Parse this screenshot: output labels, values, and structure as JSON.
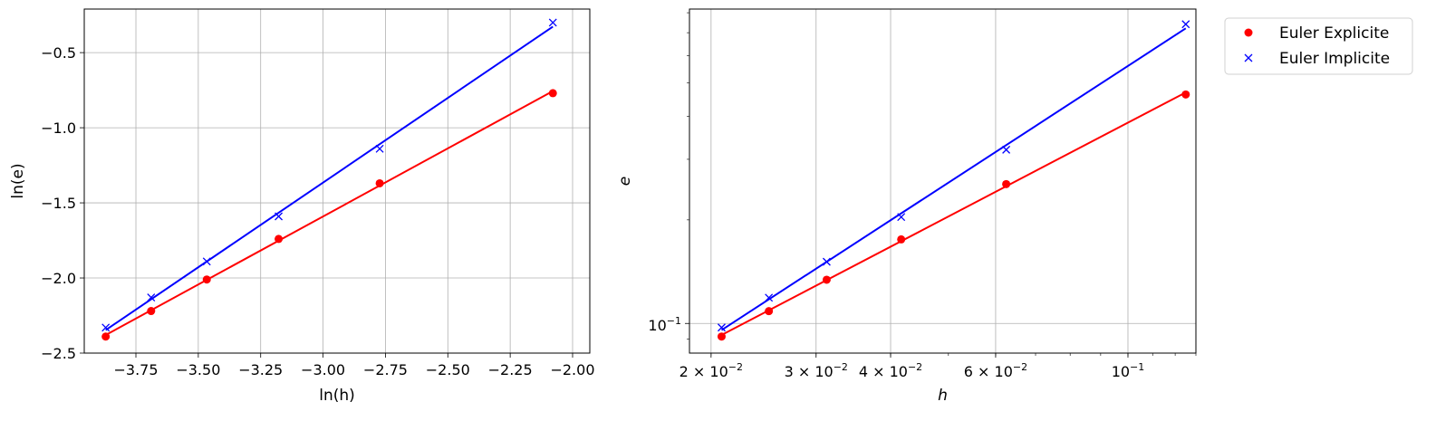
{
  "chart_data": [
    {
      "type": "line",
      "title": "",
      "xlabel": "ln(h)",
      "ylabel": "ln(e)",
      "xlim": [
        -3.957,
        -1.931
      ],
      "ylim": [
        -2.5,
        -0.21
      ],
      "xscale": "linear",
      "yscale": "linear",
      "grid": true,
      "xticks": [
        -3.75,
        -3.5,
        -3.25,
        -3.0,
        -2.75,
        -2.5,
        -2.25,
        -2.0
      ],
      "xtick_labels": [
        "−3.75",
        "−3.50",
        "−3.25",
        "−3.00",
        "−2.75",
        "−2.50",
        "−2.25",
        "−2.00"
      ],
      "yticks": [
        -2.5,
        -2.0,
        -1.5,
        -1.0,
        -0.5
      ],
      "ytick_labels": [
        "−2.5",
        "−2.0",
        "−1.5",
        "−1.0",
        "−0.5"
      ],
      "x": [
        -3.871,
        -3.689,
        -3.466,
        -3.178,
        -2.773,
        -2.079
      ],
      "series": [
        {
          "name": "Euler Explicite",
          "marker": "circle",
          "color": "#ff0000",
          "fit_line": true,
          "values": [
            -2.39,
            -2.22,
            -2.01,
            -1.74,
            -1.37,
            -0.77
          ]
        },
        {
          "name": "Euler Implicite",
          "marker": "x",
          "color": "#0000ff",
          "fit_line": true,
          "values": [
            -2.33,
            -2.13,
            -1.89,
            -1.59,
            -1.14,
            -0.3
          ]
        }
      ]
    },
    {
      "type": "line",
      "title": "",
      "xlabel": "h",
      "ylabel": "e",
      "xlim": [
        0.0184,
        0.13
      ],
      "ylim": [
        0.082,
        0.82
      ],
      "xscale": "log",
      "yscale": "log",
      "grid": true,
      "xticks": [
        0.02,
        0.03,
        0.04,
        0.06,
        0.1
      ],
      "xtick_labels": [
        {
          "base": "2 × 10",
          "exp": "−2"
        },
        {
          "base": "3 × 10",
          "exp": "−2"
        },
        {
          "base": "4 × 10",
          "exp": "−2"
        },
        {
          "base": "6 × 10",
          "exp": "−2"
        },
        {
          "base": "10",
          "exp": "−1"
        }
      ],
      "yticks": [
        0.1
      ],
      "ytick_labels": [
        {
          "base": "10",
          "exp": "−1"
        }
      ],
      "x": [
        0.02083,
        0.025,
        0.03125,
        0.04167,
        0.0625,
        0.125
      ],
      "series": [
        {
          "name": "Euler Explicite",
          "marker": "circle",
          "color": "#ff0000",
          "fit_line": true,
          "values": [
            0.0916,
            0.1086,
            0.134,
            0.1755,
            0.2541,
            0.463
          ]
        },
        {
          "name": "Euler Implicite",
          "marker": "x",
          "color": "#0000ff",
          "fit_line": true,
          "values": [
            0.0973,
            0.1188,
            0.1511,
            0.2039,
            0.3198,
            0.7408
          ]
        }
      ],
      "legend": {
        "placement": "outside-top-right",
        "entries": [
          "Euler Explicite",
          "Euler Implicite"
        ]
      }
    }
  ]
}
